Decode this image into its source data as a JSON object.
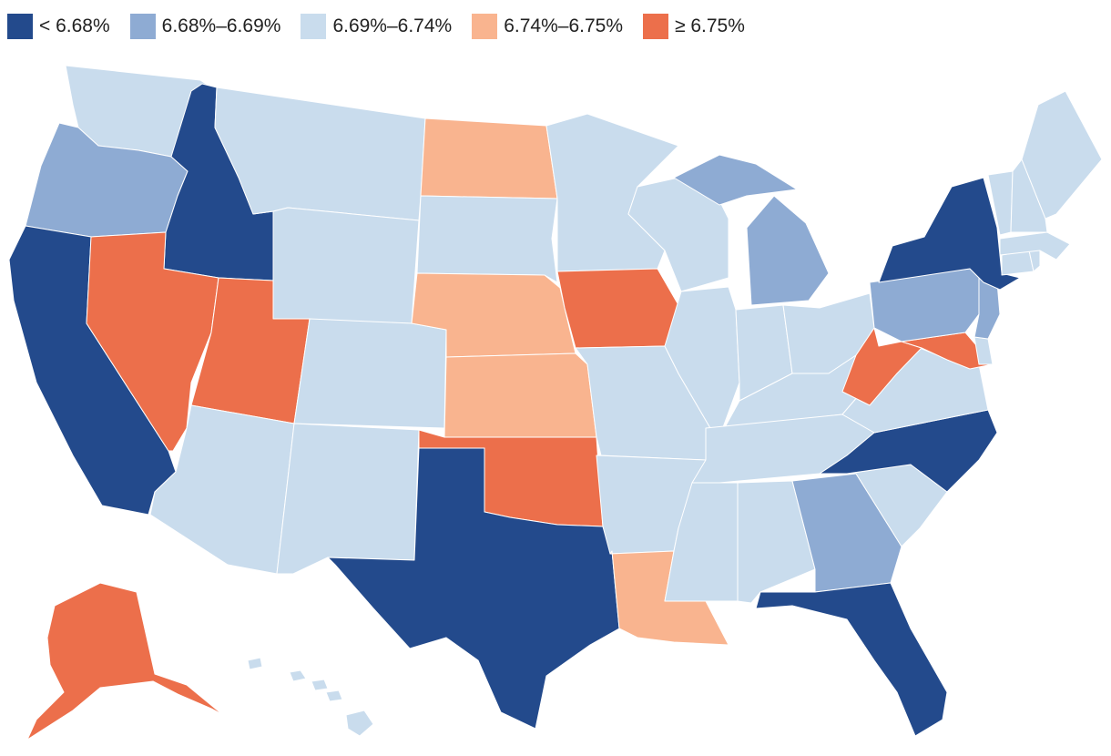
{
  "legend": [
    {
      "label": "< 6.68%",
      "color": "#234a8c"
    },
    {
      "label": "6.68%–6.69%",
      "color": "#8eabd3"
    },
    {
      "label": "6.69%–6.74%",
      "color": "#c9dced"
    },
    {
      "label": "6.74%–6.75%",
      "color": "#f9b48f"
    },
    {
      "label": "≥ 6.75%",
      "color": "#ec6f4b"
    }
  ],
  "states": {
    "WA": 2,
    "OR": 1,
    "CA": 0,
    "ID": 0,
    "NV": 4,
    "MT": 2,
    "WY": 2,
    "UT": 4,
    "AZ": 2,
    "CO": 2,
    "NM": 2,
    "ND": 3,
    "SD": 2,
    "NE": 3,
    "KS": 3,
    "OK": 4,
    "TX": 0,
    "MN": 2,
    "IA": 4,
    "MO": 2,
    "AR": 2,
    "LA": 3,
    "WI": 2,
    "IL": 2,
    "MI": 1,
    "IN": 2,
    "OH": 2,
    "KY": 2,
    "TN": 2,
    "MS": 2,
    "AL": 2,
    "GA": 1,
    "FL": 0,
    "SC": 2,
    "NC": 0,
    "VA": 2,
    "WV": 4,
    "MD": 4,
    "DE": 2,
    "PA": 1,
    "NJ": 1,
    "NY": 0,
    "CT": 2,
    "RI": 2,
    "MA": 2,
    "VT": 2,
    "NH": 2,
    "ME": 2,
    "AK": 4,
    "HI": 2
  }
}
